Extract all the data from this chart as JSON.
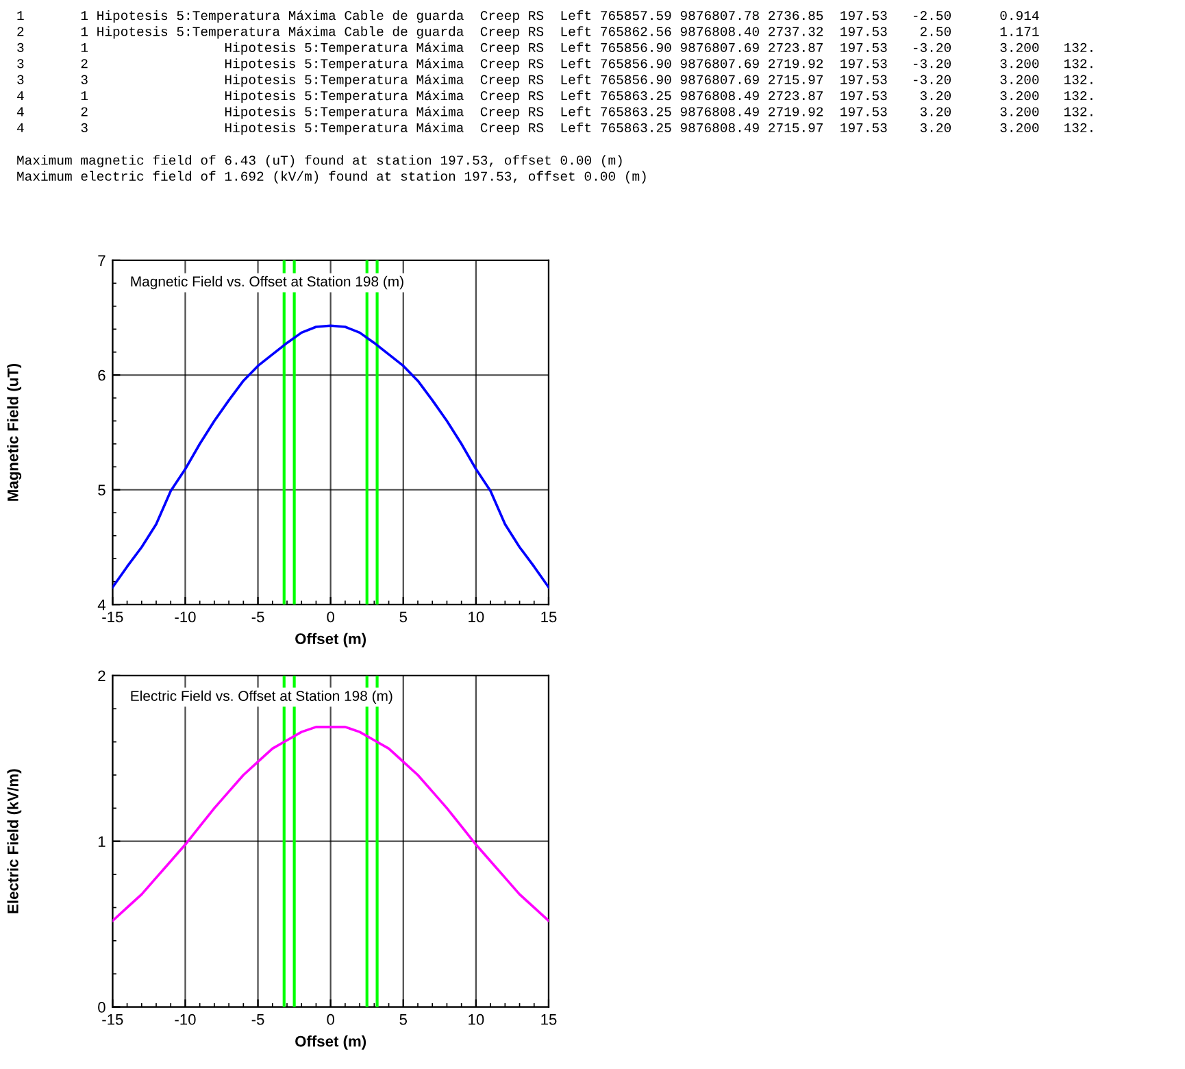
{
  "chart_data": [
    {
      "type": "line",
      "title": "Magnetic Field vs. Offset at Station 198 (m)",
      "xlabel": "Offset (m)",
      "ylabel": "Magnetic Field (uT)",
      "annotations": [
        "1       1 Hipotesis 5:Temperatura Máxima Cable de guarda  Creep RS  Left 765857.59 9876807.78 2736.85  197.53   -2.50      0.914",
        "2       1 Hipotesis 5:Temperatura Máxima Cable de guarda  Creep RS  Left 765862.56 9876808.40 2737.32  197.53    2.50      1.171",
        "3       1                 Hipotesis 5:Temperatura Máxima  Creep RS  Left 765856.90 9876807.69 2723.87  197.53   -3.20      3.200   132.",
        "3       2                 Hipotesis 5:Temperatura Máxima  Creep RS  Left 765856.90 9876807.69 2719.92  197.53   -3.20      3.200   132.",
        "3       3                 Hipotesis 5:Temperatura Máxima  Creep RS  Left 765856.90 9876807.69 2715.97  197.53   -3.20      3.200   132.",
        "4       1                 Hipotesis 5:Temperatura Máxima  Creep RS  Left 765863.25 9876808.49 2723.87  197.53    3.20      3.200   132.",
        "4       2                 Hipotesis 5:Temperatura Máxima  Creep RS  Left 765863.25 9876808.49 2719.92  197.53    3.20      3.200   132.",
        "4       3                 Hipotesis 5:Temperatura Máxima  Creep RS  Left 765863.25 9876808.49 2715.97  197.53    3.20      3.200   132.",
        "Maximum magnetic field of 6.43 (uT) found at station 197.53, offset 0.00 (m)",
        "Maximum electric field of 1.692 (kV/m) found at station 197.53, offset 0.00 (m)"
      ],
      "x": [
        -15,
        -14,
        -13,
        -12,
        -11,
        -10,
        -9,
        -8,
        -7,
        -6,
        -5,
        -4,
        -3,
        -2,
        -1,
        0,
        1,
        2,
        3,
        4,
        5,
        6,
        7,
        8,
        9,
        10,
        11,
        12,
        13,
        14,
        15
      ],
      "series": [
        {
          "color": "#0000ff",
          "values": [
            4.15,
            4.33,
            4.5,
            4.7,
            4.99,
            5.18,
            5.4,
            5.6,
            5.78,
            5.95,
            6.08,
            6.18,
            6.28,
            6.37,
            6.42,
            6.43,
            6.42,
            6.37,
            6.28,
            6.18,
            6.08,
            5.95,
            5.78,
            5.6,
            5.4,
            5.18,
            4.99,
            4.7,
            4.5,
            4.33,
            4.15
          ]
        }
      ],
      "xlim": [
        -15,
        15
      ],
      "xticks": [
        -15,
        -10,
        -5,
        0,
        5,
        10,
        15
      ],
      "ylim": [
        4,
        7
      ],
      "yticks": [
        4,
        5,
        6,
        7
      ],
      "grid": true,
      "ref_lines": [
        {
          "axis": "x",
          "value": -3.2,
          "color": "#00ff00"
        },
        {
          "axis": "x",
          "value": -2.5,
          "color": "#00ff00"
        },
        {
          "axis": "x",
          "value": 2.5,
          "color": "#00ff00"
        },
        {
          "axis": "x",
          "value": 3.2,
          "color": "#00ff00"
        }
      ]
    },
    {
      "type": "line",
      "title": "Electric Field vs. Offset at Station 198 (m)",
      "xlabel": "Offset (m)",
      "ylabel": "Electric Field (kV/m)",
      "x": [
        -15,
        -14,
        -13,
        -12,
        -11,
        -10,
        -9,
        -8,
        -7,
        -6,
        -5,
        -4,
        -3,
        -2,
        -1,
        0,
        1,
        2,
        3,
        4,
        5,
        6,
        7,
        8,
        9,
        10,
        11,
        12,
        13,
        14,
        15
      ],
      "series": [
        {
          "color": "#ff00ff",
          "values": [
            0.52,
            0.6,
            0.68,
            0.78,
            0.88,
            0.98,
            1.09,
            1.2,
            1.3,
            1.4,
            1.48,
            1.56,
            1.61,
            1.66,
            1.69,
            1.69,
            1.69,
            1.66,
            1.61,
            1.56,
            1.48,
            1.4,
            1.3,
            1.2,
            1.09,
            0.98,
            0.88,
            0.78,
            0.68,
            0.6,
            0.52
          ]
        }
      ],
      "xlim": [
        -15,
        15
      ],
      "xticks": [
        -15,
        -10,
        -5,
        0,
        5,
        10,
        15
      ],
      "ylim": [
        0,
        2
      ],
      "yticks": [
        0,
        1,
        2
      ],
      "grid": true,
      "ref_lines": [
        {
          "axis": "x",
          "value": -3.2,
          "color": "#00ff00"
        },
        {
          "axis": "x",
          "value": -2.5,
          "color": "#00ff00"
        },
        {
          "axis": "x",
          "value": 2.5,
          "color": "#00ff00"
        },
        {
          "axis": "x",
          "value": 3.2,
          "color": "#00ff00"
        }
      ]
    }
  ]
}
